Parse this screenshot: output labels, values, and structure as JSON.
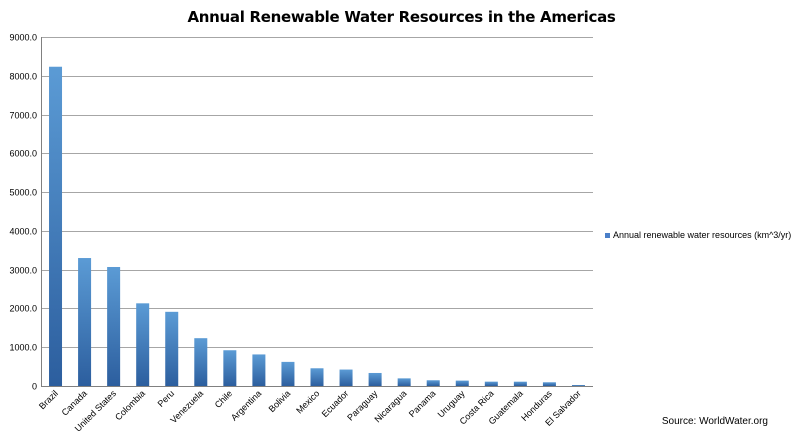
{
  "chart_data": {
    "type": "bar",
    "title": "Annual Renewable Water Resources in the Americas",
    "xlabel": "",
    "ylabel": "",
    "categories": [
      "Brazil",
      "Canada",
      "United States",
      "Colombia",
      "Peru",
      "Venezuela",
      "Chile",
      "Argentina",
      "Bolivia",
      "Mexico",
      "Ecuador",
      "Paraguay",
      "Nicaragua",
      "Panama",
      "Uruguay",
      "Costa Rica",
      "Guatemala",
      "Honduras",
      "El Salvador"
    ],
    "series": [
      {
        "name": "Annual renewable water resources (km^3/yr)",
        "values": [
          8233,
          3300,
          3069,
          2132,
          1913,
          1233,
          922,
          814,
          622,
          457,
          424,
          336,
          197,
          148,
          139,
          112,
          111,
          96,
          25
        ]
      }
    ],
    "ylim": [
      0,
      9000
    ],
    "yticks": [
      "0",
      "1000.0",
      "2000.0",
      "3000.0",
      "4000.0",
      "5000.0",
      "6000.0",
      "7000.0",
      "8000.0",
      "9000.0"
    ],
    "grid": true,
    "legend_position": "right",
    "colors": {
      "bar_light": "#5b9bd5",
      "bar_dark": "#2c5e9e",
      "grid": "#a6a6a6",
      "axis": "#808080"
    }
  },
  "source_note": "Source: WorldWater.org"
}
